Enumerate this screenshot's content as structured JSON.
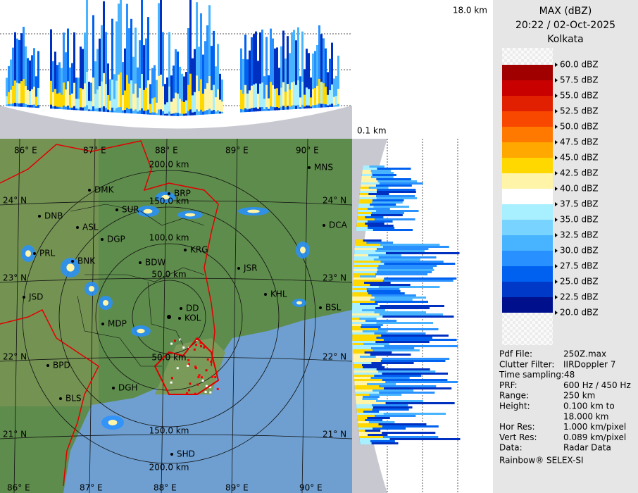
{
  "header": {
    "title": "MAX (dBZ)",
    "time": "20:22 / 02-Oct-2025",
    "site": "Kolkata"
  },
  "heights": {
    "top": "18.0 km",
    "bottom": "0.1 km"
  },
  "legend": {
    "labels": [
      "60.0 dBZ",
      "57.5 dBZ",
      "55.0 dBZ",
      "52.5 dBZ",
      "50.0 dBZ",
      "47.5 dBZ",
      "45.0 dBZ",
      "42.5 dBZ",
      "40.0 dBZ",
      "37.5 dBZ",
      "35.0 dBZ",
      "32.5 dBZ",
      "30.0 dBZ",
      "27.5 dBZ",
      "25.0 dBZ",
      "22.5 dBZ",
      "20.0 dBZ"
    ],
    "colors": [
      "#eeeeee",
      "#a00000",
      "#c80000",
      "#e02000",
      "#f84800",
      "#ff7800",
      "#ffa800",
      "#ffd800",
      "#fff4a8",
      "#ffffff",
      "#a8f0ff",
      "#78d4ff",
      "#48b4ff",
      "#2890ff",
      "#0060f0",
      "#0038c8",
      "#00108c"
    ]
  },
  "info": [
    {
      "label": "Pdf File:",
      "value": "250Z.max"
    },
    {
      "label": "Clutter Filter:",
      "value": "IIRDoppler 7"
    },
    {
      "label": "Time sampling:48"
    },
    {
      "label": "PRF:",
      "value": "600 Hz / 450 Hz"
    },
    {
      "label": "Range:",
      "value": "250 km"
    },
    {
      "label": "Height:",
      "value": "0.100 km to"
    },
    {
      "value": "18.000 km"
    },
    {
      "label": "Hor Res:",
      "value": "1.000 km/pixel"
    },
    {
      "label": "Vert Res:",
      "value": "0.089 km/pixel"
    },
    {
      "label": "Data:",
      "value": "Radar Data"
    }
  ],
  "footer": "Rainbow® SELEX-SI",
  "map": {
    "lon": [
      "86° E",
      "87° E",
      "88° E",
      "89° E",
      "90° E"
    ],
    "lat": [
      "24° N",
      "23° N",
      "22° N",
      "21° N"
    ],
    "rings": [
      "50.0 km",
      "100.0 km",
      "150.0 km",
      "200.0 km"
    ],
    "places": [
      "MNS",
      "DMK",
      "BRP",
      "SUR",
      "DNB",
      "ASL",
      "DGP",
      "DCA",
      "KRG",
      "BDW",
      "PRL",
      "BNK",
      "JSR",
      "JSD",
      "KHL",
      "BSL",
      "DD",
      "KOL",
      "MDP",
      "BPD",
      "BLS",
      "DGH",
      "SHD"
    ]
  }
}
